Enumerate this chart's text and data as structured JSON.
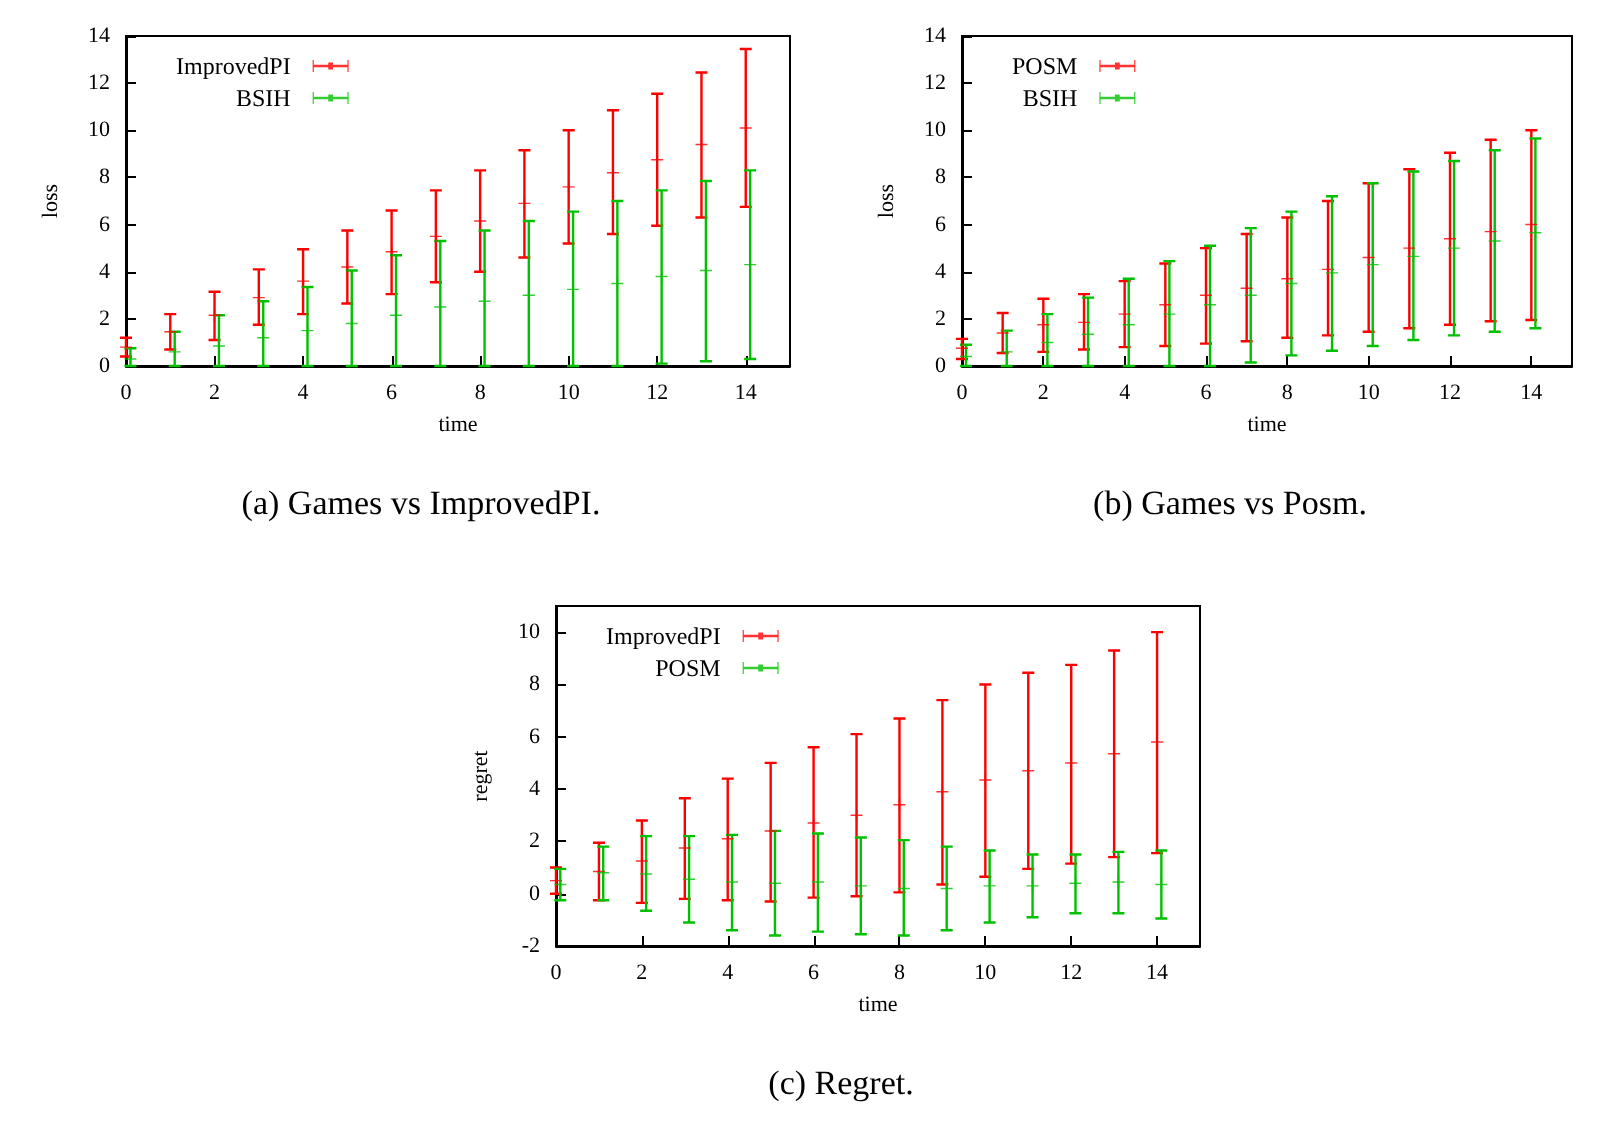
{
  "chart_data": [
    {
      "type": "scatter",
      "xlabel": "time",
      "ylabel": "loss",
      "annotations": [
        "(a) Games vs ImprovedPI."
      ],
      "xlim": [
        0,
        15
      ],
      "xticks": [
        0,
        2,
        4,
        6,
        8,
        10,
        12,
        14
      ],
      "ylim": [
        0,
        14
      ],
      "yticks": [
        0,
        2,
        4,
        6,
        8,
        10,
        12,
        14
      ],
      "grid": false,
      "legend": "top left",
      "marker": "cross",
      "line_style": "none",
      "x": [
        0,
        1,
        2,
        3,
        4,
        5,
        6,
        7,
        8,
        9,
        10,
        11,
        12,
        13,
        14
      ],
      "series": [
        {
          "name": "ImprovedPI",
          "color": "#ff0000",
          "values": [
            0.8,
            1.45,
            2.15,
            2.9,
            3.6,
            4.2,
            4.85,
            5.5,
            6.15,
            6.9,
            7.6,
            8.2,
            8.75,
            9.4,
            10.1
          ],
          "errors": [
            [
              0.4,
              1.2
            ],
            [
              0.7,
              2.2
            ],
            [
              1.1,
              3.15
            ],
            [
              1.75,
              4.1
            ],
            [
              2.2,
              4.95
            ],
            [
              2.65,
              5.75
            ],
            [
              3.05,
              6.6
            ],
            [
              3.55,
              7.45
            ],
            [
              4.0,
              8.3
            ],
            [
              4.6,
              9.15
            ],
            [
              5.2,
              10.0
            ],
            [
              5.6,
              10.85
            ],
            [
              5.95,
              11.55
            ],
            [
              6.3,
              12.45
            ],
            [
              6.75,
              13.45
            ]
          ]
        },
        {
          "name": "BSIH",
          "color": "#00c000",
          "x": [
            0.1,
            1.1,
            2.1,
            3.1,
            4.1,
            5.1,
            6.1,
            7.1,
            8.1,
            9.1,
            10.1,
            11.1,
            12.1,
            13.1,
            14.1
          ],
          "values": [
            0.3,
            0.6,
            0.85,
            1.2,
            1.5,
            1.8,
            2.15,
            2.5,
            2.75,
            3.0,
            3.25,
            3.5,
            3.8,
            4.05,
            4.3
          ],
          "errors": [
            [
              0,
              0.75
            ],
            [
              0,
              1.45
            ],
            [
              0,
              2.15
            ],
            [
              0,
              2.75
            ],
            [
              0,
              3.35
            ],
            [
              0,
              4.05
            ],
            [
              0,
              4.7
            ],
            [
              0,
              5.3
            ],
            [
              0,
              5.75
            ],
            [
              0,
              6.15
            ],
            [
              0,
              6.55
            ],
            [
              0,
              7.0
            ],
            [
              0.1,
              7.45
            ],
            [
              0.2,
              7.85
            ],
            [
              0.3,
              8.3
            ]
          ]
        }
      ]
    },
    {
      "type": "scatter",
      "xlabel": "time",
      "ylabel": "loss",
      "annotations": [
        "(b) Games vs Posm."
      ],
      "xlim": [
        0,
        15
      ],
      "xticks": [
        0,
        2,
        4,
        6,
        8,
        10,
        12,
        14
      ],
      "ylim": [
        0,
        14
      ],
      "yticks": [
        0,
        2,
        4,
        6,
        8,
        10,
        12,
        14
      ],
      "grid": false,
      "legend": "top left",
      "marker": "cross",
      "line_style": "none",
      "x": [
        0,
        1,
        2,
        3,
        4,
        5,
        6,
        7,
        8,
        9,
        10,
        11,
        12,
        13,
        14
      ],
      "series": [
        {
          "name": "POSM",
          "color": "#ff0000",
          "values": [
            0.75,
            1.4,
            1.75,
            1.85,
            2.2,
            2.6,
            3.0,
            3.3,
            3.7,
            4.1,
            4.6,
            5.0,
            5.4,
            5.7,
            6.0
          ],
          "errors": [
            [
              0.3,
              1.15
            ],
            [
              0.55,
              2.25
            ],
            [
              0.6,
              2.85
            ],
            [
              0.7,
              3.05
            ],
            [
              0.8,
              3.6
            ],
            [
              0.85,
              4.35
            ],
            [
              0.95,
              5.0
            ],
            [
              1.05,
              5.6
            ],
            [
              1.2,
              6.3
            ],
            [
              1.3,
              7.0
            ],
            [
              1.45,
              7.75
            ],
            [
              1.6,
              8.35
            ],
            [
              1.75,
              9.05
            ],
            [
              1.9,
              9.6
            ],
            [
              1.95,
              10.0
            ]
          ]
        },
        {
          "name": "BSIH",
          "color": "#00c000",
          "x": [
            0.1,
            1.1,
            2.1,
            3.1,
            4.1,
            5.1,
            6.1,
            7.1,
            8.1,
            9.1,
            10.1,
            11.1,
            12.1,
            13.1,
            14.1
          ],
          "values": [
            0.4,
            0.6,
            1.0,
            1.35,
            1.75,
            2.2,
            2.6,
            3.0,
            3.5,
            3.95,
            4.3,
            4.65,
            5.0,
            5.3,
            5.65
          ],
          "errors": [
            [
              0,
              0.9
            ],
            [
              0,
              1.5
            ],
            [
              0,
              2.2
            ],
            [
              0,
              2.9
            ],
            [
              0,
              3.7
            ],
            [
              0,
              4.45
            ],
            [
              0,
              5.1
            ],
            [
              0.15,
              5.85
            ],
            [
              0.45,
              6.55
            ],
            [
              0.65,
              7.2
            ],
            [
              0.85,
              7.75
            ],
            [
              1.1,
              8.25
            ],
            [
              1.3,
              8.7
            ],
            [
              1.45,
              9.15
            ],
            [
              1.6,
              9.65
            ]
          ]
        }
      ]
    },
    {
      "type": "scatter",
      "xlabel": "time",
      "ylabel": "regret",
      "annotations": [
        "(c) Regret."
      ],
      "xlim": [
        0,
        15
      ],
      "xticks": [
        0,
        2,
        4,
        6,
        8,
        10,
        12,
        14
      ],
      "ylim": [
        -2,
        11
      ],
      "yticks": [
        -2,
        0,
        2,
        4,
        6,
        8,
        10
      ],
      "grid": false,
      "legend": "top left",
      "marker": "cross",
      "line_style": "none",
      "x": [
        0,
        1,
        2,
        3,
        4,
        5,
        6,
        7,
        8,
        9,
        10,
        11,
        12,
        13,
        14
      ],
      "series": [
        {
          "name": "ImprovedPI",
          "color": "#ff0000",
          "values": [
            0.5,
            0.85,
            1.25,
            1.75,
            2.1,
            2.4,
            2.7,
            3.0,
            3.4,
            3.9,
            4.35,
            4.7,
            5.0,
            5.35,
            5.8
          ],
          "errors": [
            [
              0,
              1.0
            ],
            [
              -0.25,
              1.95
            ],
            [
              -0.35,
              2.8
            ],
            [
              -0.2,
              3.65
            ],
            [
              -0.25,
              4.4
            ],
            [
              -0.3,
              5.0
            ],
            [
              -0.15,
              5.6
            ],
            [
              -0.1,
              6.1
            ],
            [
              0.05,
              6.7
            ],
            [
              0.35,
              7.4
            ],
            [
              0.65,
              8.0
            ],
            [
              0.95,
              8.45
            ],
            [
              1.15,
              8.75
            ],
            [
              1.4,
              9.3
            ],
            [
              1.55,
              10.0
            ]
          ]
        },
        {
          "name": "POSM",
          "color": "#00c000",
          "x": [
            0.1,
            1.1,
            2.1,
            3.1,
            4.1,
            5.1,
            6.1,
            7.1,
            8.1,
            9.1,
            10.1,
            11.1,
            12.1,
            13.1,
            14.1
          ],
          "values": [
            0.35,
            0.8,
            0.75,
            0.55,
            0.45,
            0.4,
            0.45,
            0.3,
            0.2,
            0.2,
            0.3,
            0.3,
            0.4,
            0.45,
            0.35
          ],
          "errors": [
            [
              -0.25,
              0.95
            ],
            [
              -0.25,
              1.8
            ],
            [
              -0.65,
              2.2
            ],
            [
              -1.1,
              2.2
            ],
            [
              -1.4,
              2.25
            ],
            [
              -1.6,
              2.4
            ],
            [
              -1.45,
              2.3
            ],
            [
              -1.55,
              2.15
            ],
            [
              -1.6,
              2.05
            ],
            [
              -1.4,
              1.8
            ],
            [
              -1.1,
              1.65
            ],
            [
              -0.9,
              1.5
            ],
            [
              -0.75,
              1.5
            ],
            [
              -0.75,
              1.6
            ],
            [
              -0.95,
              1.65
            ]
          ]
        }
      ]
    }
  ]
}
